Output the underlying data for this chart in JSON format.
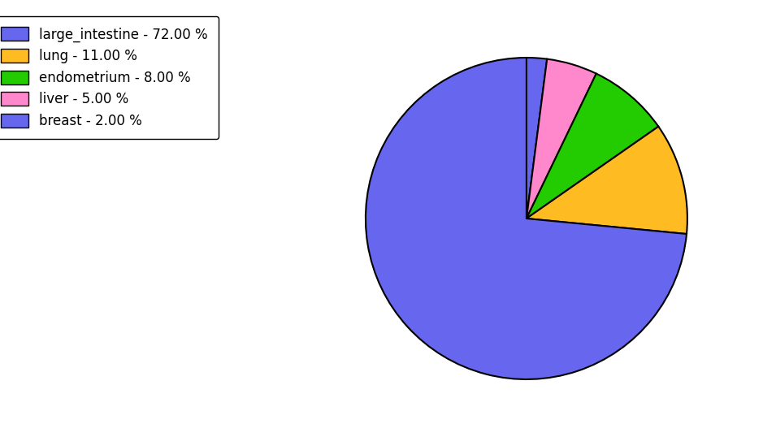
{
  "values": [
    72.0,
    11.0,
    8.0,
    5.0,
    2.0
  ],
  "colors": [
    "#6666ee",
    "#ffbb22",
    "#22cc00",
    "#ff88cc",
    "#6666ee"
  ],
  "legend_labels": [
    "large_intestine - 72.00 %",
    "lung - 11.00 %",
    "endometrium - 8.00 %",
    "liver - 5.00 %",
    "breast - 2.00 %"
  ],
  "legend_colors": [
    "#6666ee",
    "#ffbb22",
    "#22cc00",
    "#ff88cc",
    "#6666ee"
  ],
  "startangle": 90,
  "background_color": "#ffffff",
  "figsize": [
    9.39,
    5.38
  ],
  "dpi": 100
}
